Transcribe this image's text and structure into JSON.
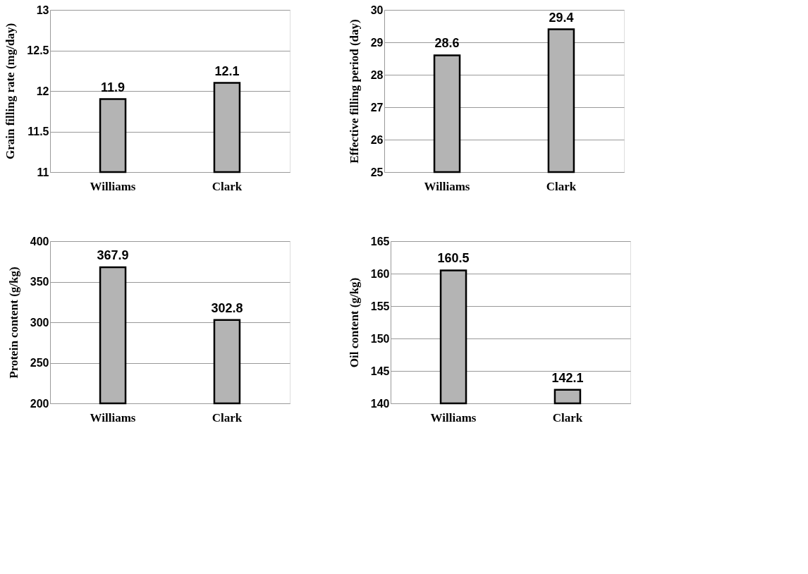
{
  "chart_data": [
    {
      "type": "bar",
      "ylabel": "Grain filling rate (mg/day)",
      "categories": [
        "Williams",
        "Clark"
      ],
      "values": [
        11.9,
        12.1
      ],
      "color": "#b4b4b4",
      "ylim": [
        11,
        13
      ],
      "yticks": [
        11,
        11.5,
        12,
        12.5,
        13
      ],
      "grid": "y",
      "data_labels": true
    },
    {
      "type": "bar",
      "ylabel": "Effective filling period (day)",
      "categories": [
        "Williams",
        "Clark"
      ],
      "values": [
        28.6,
        29.4
      ],
      "color": "#b4b4b4",
      "ylim": [
        25,
        30
      ],
      "yticks": [
        25,
        26,
        27,
        28,
        29,
        30
      ],
      "grid": "y",
      "data_labels": true
    },
    {
      "type": "bar",
      "ylabel": "Protein content (g/kg)",
      "categories": [
        "Williams",
        "Clark"
      ],
      "values": [
        367.9,
        302.8
      ],
      "color": "#b4b4b4",
      "ylim": [
        200,
        400
      ],
      "yticks": [
        200,
        250,
        300,
        350,
        400
      ],
      "grid": "y",
      "data_labels": true
    },
    {
      "type": "bar",
      "ylabel": "Oil content (g/kg)",
      "categories": [
        "Williams",
        "Clark"
      ],
      "values": [
        160.5,
        142.1
      ],
      "color": "#b4b4b4",
      "ylim": [
        140,
        165
      ],
      "yticks": [
        140,
        145,
        150,
        155,
        160,
        165
      ],
      "grid": "y",
      "data_labels": true
    }
  ]
}
